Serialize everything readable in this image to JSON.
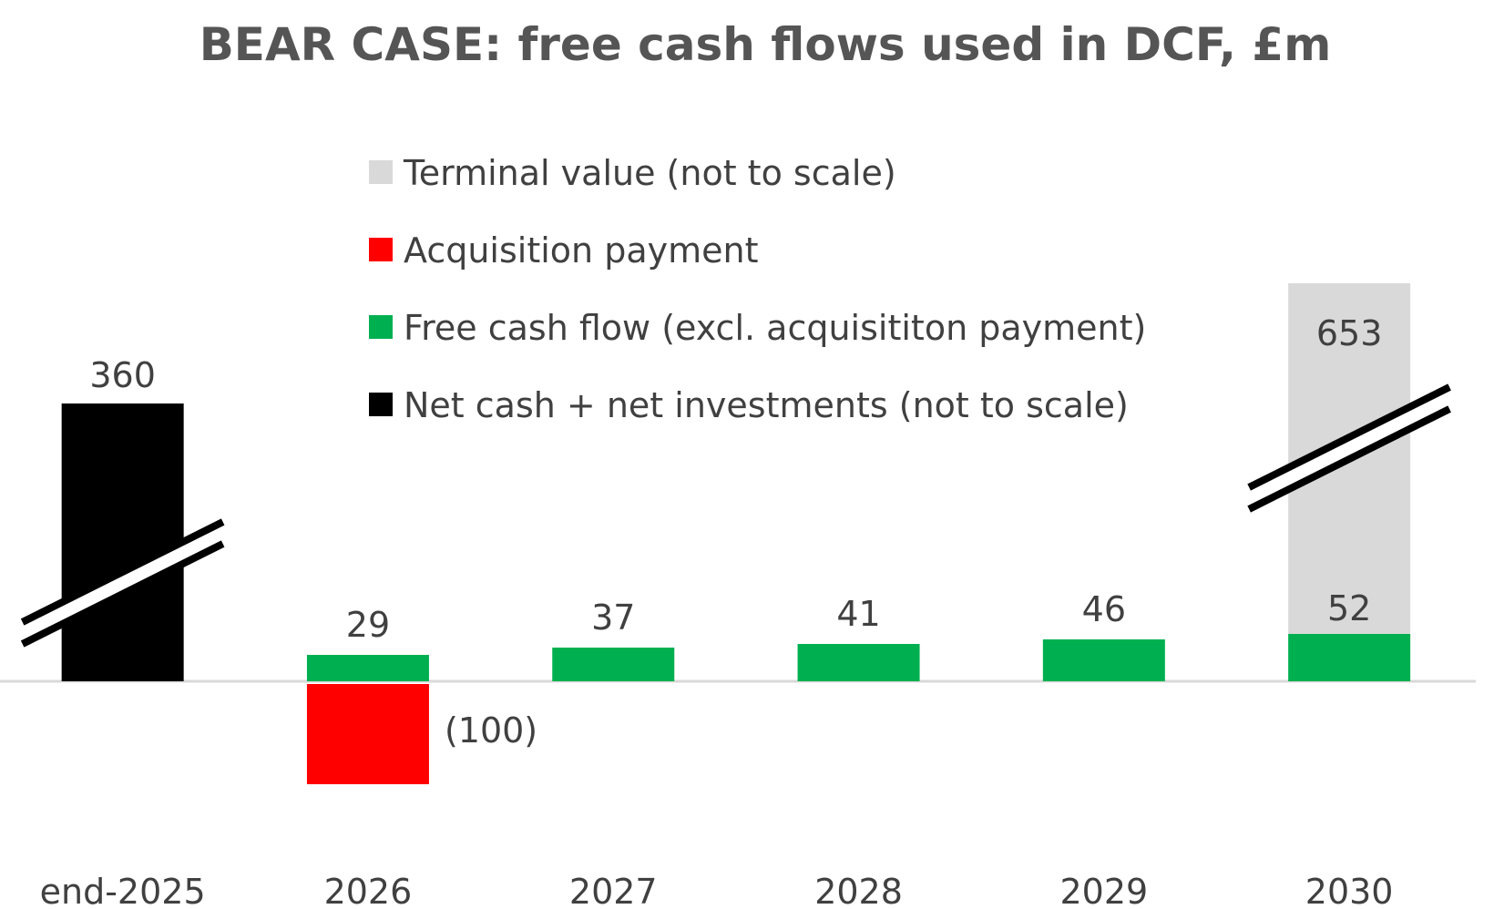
{
  "chart_data": {
    "type": "bar",
    "title": "BEAR CASE: free cash flows used in DCF, £m",
    "xlabel": "",
    "ylabel": "",
    "categories": [
      "end-2025",
      "2026",
      "2027",
      "2028",
      "2029",
      "2030"
    ],
    "series": [
      {
        "name": "Terminal value (not to scale)",
        "color": "#d9d9d9",
        "values": [
          null,
          null,
          null,
          null,
          null,
          653
        ],
        "labels": [
          "",
          "",
          "",
          "",
          "",
          "653"
        ],
        "broken_axis": true
      },
      {
        "name": "Acquisition payment",
        "color": "#ff0000",
        "values": [
          null,
          -100,
          null,
          null,
          null,
          null
        ],
        "labels": [
          "",
          "(100)",
          "",
          "",
          "",
          ""
        ]
      },
      {
        "name": "Free cash flow (excl. acquisititon payment)",
        "color": "#00b050",
        "values": [
          null,
          29,
          37,
          41,
          46,
          52
        ],
        "labels": [
          "",
          "29",
          "37",
          "41",
          "46",
          "52"
        ]
      },
      {
        "name": "Net cash + net investments (not to scale)",
        "color": "#000000",
        "values": [
          360,
          null,
          null,
          null,
          null,
          null
        ],
        "labels": [
          "360",
          "",
          "",
          "",
          "",
          ""
        ],
        "broken_axis": true
      }
    ],
    "legend_position": "top-center",
    "grid": false
  }
}
